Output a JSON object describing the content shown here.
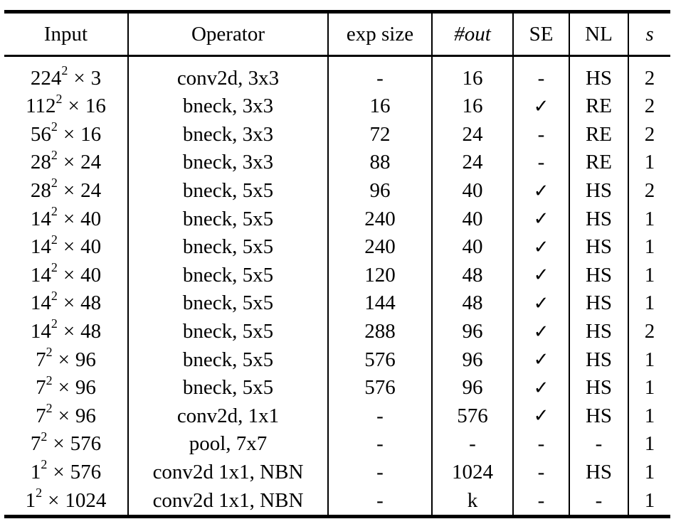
{
  "table": {
    "headers": {
      "input": "Input",
      "operator": "Operator",
      "exp_size": "exp size",
      "out": "#out",
      "se": "SE",
      "nl": "NL",
      "s": "s"
    },
    "rows": [
      {
        "input_base": "224",
        "input_exp": "2",
        "input_times": "×",
        "input_ch": "3",
        "operator": "conv2d, 3x3",
        "exp_size": "-",
        "out": "16",
        "se": "-",
        "nl": "HS",
        "s": "2"
      },
      {
        "input_base": "112",
        "input_exp": "2",
        "input_times": "×",
        "input_ch": "16",
        "operator": "bneck, 3x3",
        "exp_size": "16",
        "out": "16",
        "se": "✓",
        "nl": "RE",
        "s": "2"
      },
      {
        "input_base": "56",
        "input_exp": "2",
        "input_times": "×",
        "input_ch": "16",
        "operator": "bneck, 3x3",
        "exp_size": "72",
        "out": "24",
        "se": "-",
        "nl": "RE",
        "s": "2"
      },
      {
        "input_base": "28",
        "input_exp": "2",
        "input_times": "×",
        "input_ch": "24",
        "operator": "bneck, 3x3",
        "exp_size": "88",
        "out": "24",
        "se": "-",
        "nl": "RE",
        "s": "1"
      },
      {
        "input_base": "28",
        "input_exp": "2",
        "input_times": "×",
        "input_ch": "24",
        "operator": "bneck, 5x5",
        "exp_size": "96",
        "out": "40",
        "se": "✓",
        "nl": "HS",
        "s": "2"
      },
      {
        "input_base": "14",
        "input_exp": "2",
        "input_times": "×",
        "input_ch": "40",
        "operator": "bneck, 5x5",
        "exp_size": "240",
        "out": "40",
        "se": "✓",
        "nl": "HS",
        "s": "1"
      },
      {
        "input_base": "14",
        "input_exp": "2",
        "input_times": "×",
        "input_ch": "40",
        "operator": "bneck, 5x5",
        "exp_size": "240",
        "out": "40",
        "se": "✓",
        "nl": "HS",
        "s": "1"
      },
      {
        "input_base": "14",
        "input_exp": "2",
        "input_times": "×",
        "input_ch": "40",
        "operator": "bneck, 5x5",
        "exp_size": "120",
        "out": "48",
        "se": "✓",
        "nl": "HS",
        "s": "1"
      },
      {
        "input_base": "14",
        "input_exp": "2",
        "input_times": "×",
        "input_ch": "48",
        "operator": "bneck, 5x5",
        "exp_size": "144",
        "out": "48",
        "se": "✓",
        "nl": "HS",
        "s": "1"
      },
      {
        "input_base": "14",
        "input_exp": "2",
        "input_times": "×",
        "input_ch": "48",
        "operator": "bneck, 5x5",
        "exp_size": "288",
        "out": "96",
        "se": "✓",
        "nl": "HS",
        "s": "2"
      },
      {
        "input_base": "7",
        "input_exp": "2",
        "input_times": "×",
        "input_ch": "96",
        "operator": "bneck, 5x5",
        "exp_size": "576",
        "out": "96",
        "se": "✓",
        "nl": "HS",
        "s": "1"
      },
      {
        "input_base": "7",
        "input_exp": "2",
        "input_times": "×",
        "input_ch": "96",
        "operator": "bneck, 5x5",
        "exp_size": "576",
        "out": "96",
        "se": "✓",
        "nl": "HS",
        "s": "1"
      },
      {
        "input_base": "7",
        "input_exp": "2",
        "input_times": "×",
        "input_ch": "96",
        "operator": "conv2d, 1x1",
        "exp_size": "-",
        "out": "576",
        "se": "✓",
        "nl": "HS",
        "s": "1"
      },
      {
        "input_base": "7",
        "input_exp": "2",
        "input_times": "×",
        "input_ch": "576",
        "operator": "pool, 7x7",
        "exp_size": "-",
        "out": "-",
        "se": "-",
        "nl": "-",
        "s": "1"
      },
      {
        "input_base": "1",
        "input_exp": "2",
        "input_times": "×",
        "input_ch": "576",
        "operator": "conv2d 1x1, NBN",
        "exp_size": "-",
        "out": "1024",
        "se": "-",
        "nl": "HS",
        "s": "1"
      },
      {
        "input_base": "1",
        "input_exp": "2",
        "input_times": "×",
        "input_ch": "1024",
        "operator": "conv2d 1x1, NBN",
        "exp_size": "-",
        "out": "k",
        "se": "-",
        "nl": "-",
        "s": "1"
      }
    ]
  }
}
